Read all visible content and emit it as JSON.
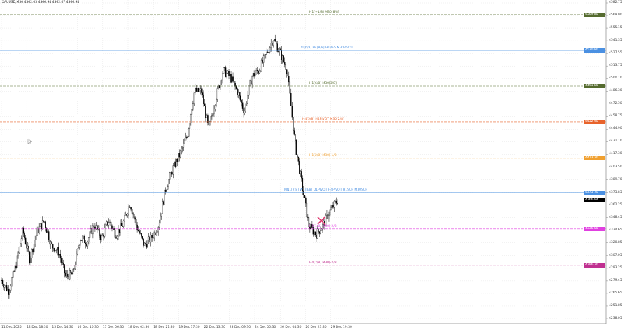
{
  "header": {
    "symbol_info": "XAUUSD,M30  4362.03 4366.94 4362.07 4366.94"
  },
  "price_axis": [
    "4582.75",
    "4569.00",
    "4555.15",
    "4541.35",
    "4527.55",
    "4513.75",
    "4500.10",
    "4486.30",
    "4472.50",
    "4458.75",
    "4444.90",
    "4431.10",
    "4417.30",
    "4403.50",
    "4389.70",
    "4375.85",
    "4362.25",
    "4348.45",
    "4334.65",
    "4320.85",
    "4307.05",
    "4293.25",
    "4279.45",
    "4265.65",
    "4251.85",
    "4238.05"
  ],
  "time_axis": [
    "11 Dec 2025",
    "12 Dec 18:30",
    "15 Dec 14:30",
    "16 Dec 10:30",
    "17 Dec 06:30",
    "18 Dec 02:30",
    "18 Dec 21:30",
    "19 Dec 17:30",
    "22 Dec 13:30",
    "23 Dec 09:30",
    "24 Dec 05:30",
    "26 Dec 04:30",
    "26 Dec 23:30",
    "29 Dec 19:30"
  ],
  "current_price": {
    "value": "4366.94",
    "color": "#000000"
  },
  "levels": [
    {
      "price": 4569.8,
      "badge": "4569.80",
      "label": "H1[+1/8] M30[8/8]",
      "color": "#556b2f",
      "style": "dashed"
    },
    {
      "price": 4530.8,
      "badge": "4530.80",
      "label": "D1[6/8] H4[8/8] H1RES M30PIVOT",
      "color": "#4a90e2",
      "style": "solid"
    },
    {
      "price": 4491.8,
      "badge": "4491.80",
      "label": "H1[6/8] M30[3/8]",
      "color": "#556b2f",
      "style": "dashed"
    },
    {
      "price": 4452.9,
      "badge": "4452.90",
      "label": "H4[5/8] H4PIVOT M30[2/8]",
      "color": "#e8632b",
      "style": "dashed"
    },
    {
      "price": 4413.2,
      "badge": "4413.20",
      "label": "H1[2/8] M30[-1/8]",
      "color": "#f0a030",
      "style": "dashed"
    },
    {
      "price": 4375.7,
      "badge": "4375.70",
      "label": "MN1[7/8] W1[8/8] D1PIVOT H4PIVOT H1SUP M30SUP",
      "color": "#4a90e2",
      "style": "solid"
    },
    {
      "price": 4336.0,
      "badge": "4336.00",
      "label": "H1[1/8] M30[-2/8]",
      "color": "#e040e0",
      "style": "dashed"
    },
    {
      "price": 4296.3,
      "badge": "4296.30",
      "label": "H4[2/8] M30[-2/8]",
      "color": "#c03090",
      "style": "dashed"
    }
  ],
  "price_range": [
    4238.05,
    4582.75
  ],
  "price_path": [
    4280,
    4268,
    4295,
    4334,
    4303,
    4333,
    4345,
    4318,
    4311,
    4284,
    4287,
    4326,
    4322,
    4341,
    4326,
    4345,
    4330,
    4341,
    4364,
    4337,
    4318,
    4326,
    4341,
    4380,
    4402,
    4418,
    4437,
    4486,
    4486,
    4444,
    4479,
    4509,
    4502,
    4486,
    4464,
    4502,
    4509,
    4525,
    4544,
    4528,
    4509,
    4433,
    4387,
    4340,
    4330,
    4340,
    4356,
    4367
  ],
  "marker": {
    "type": "cross",
    "price": 4345,
    "color": "#e0306a"
  },
  "colors": {
    "candle": "#000000",
    "grid": "#e4e4e4",
    "axis": "#888888"
  }
}
